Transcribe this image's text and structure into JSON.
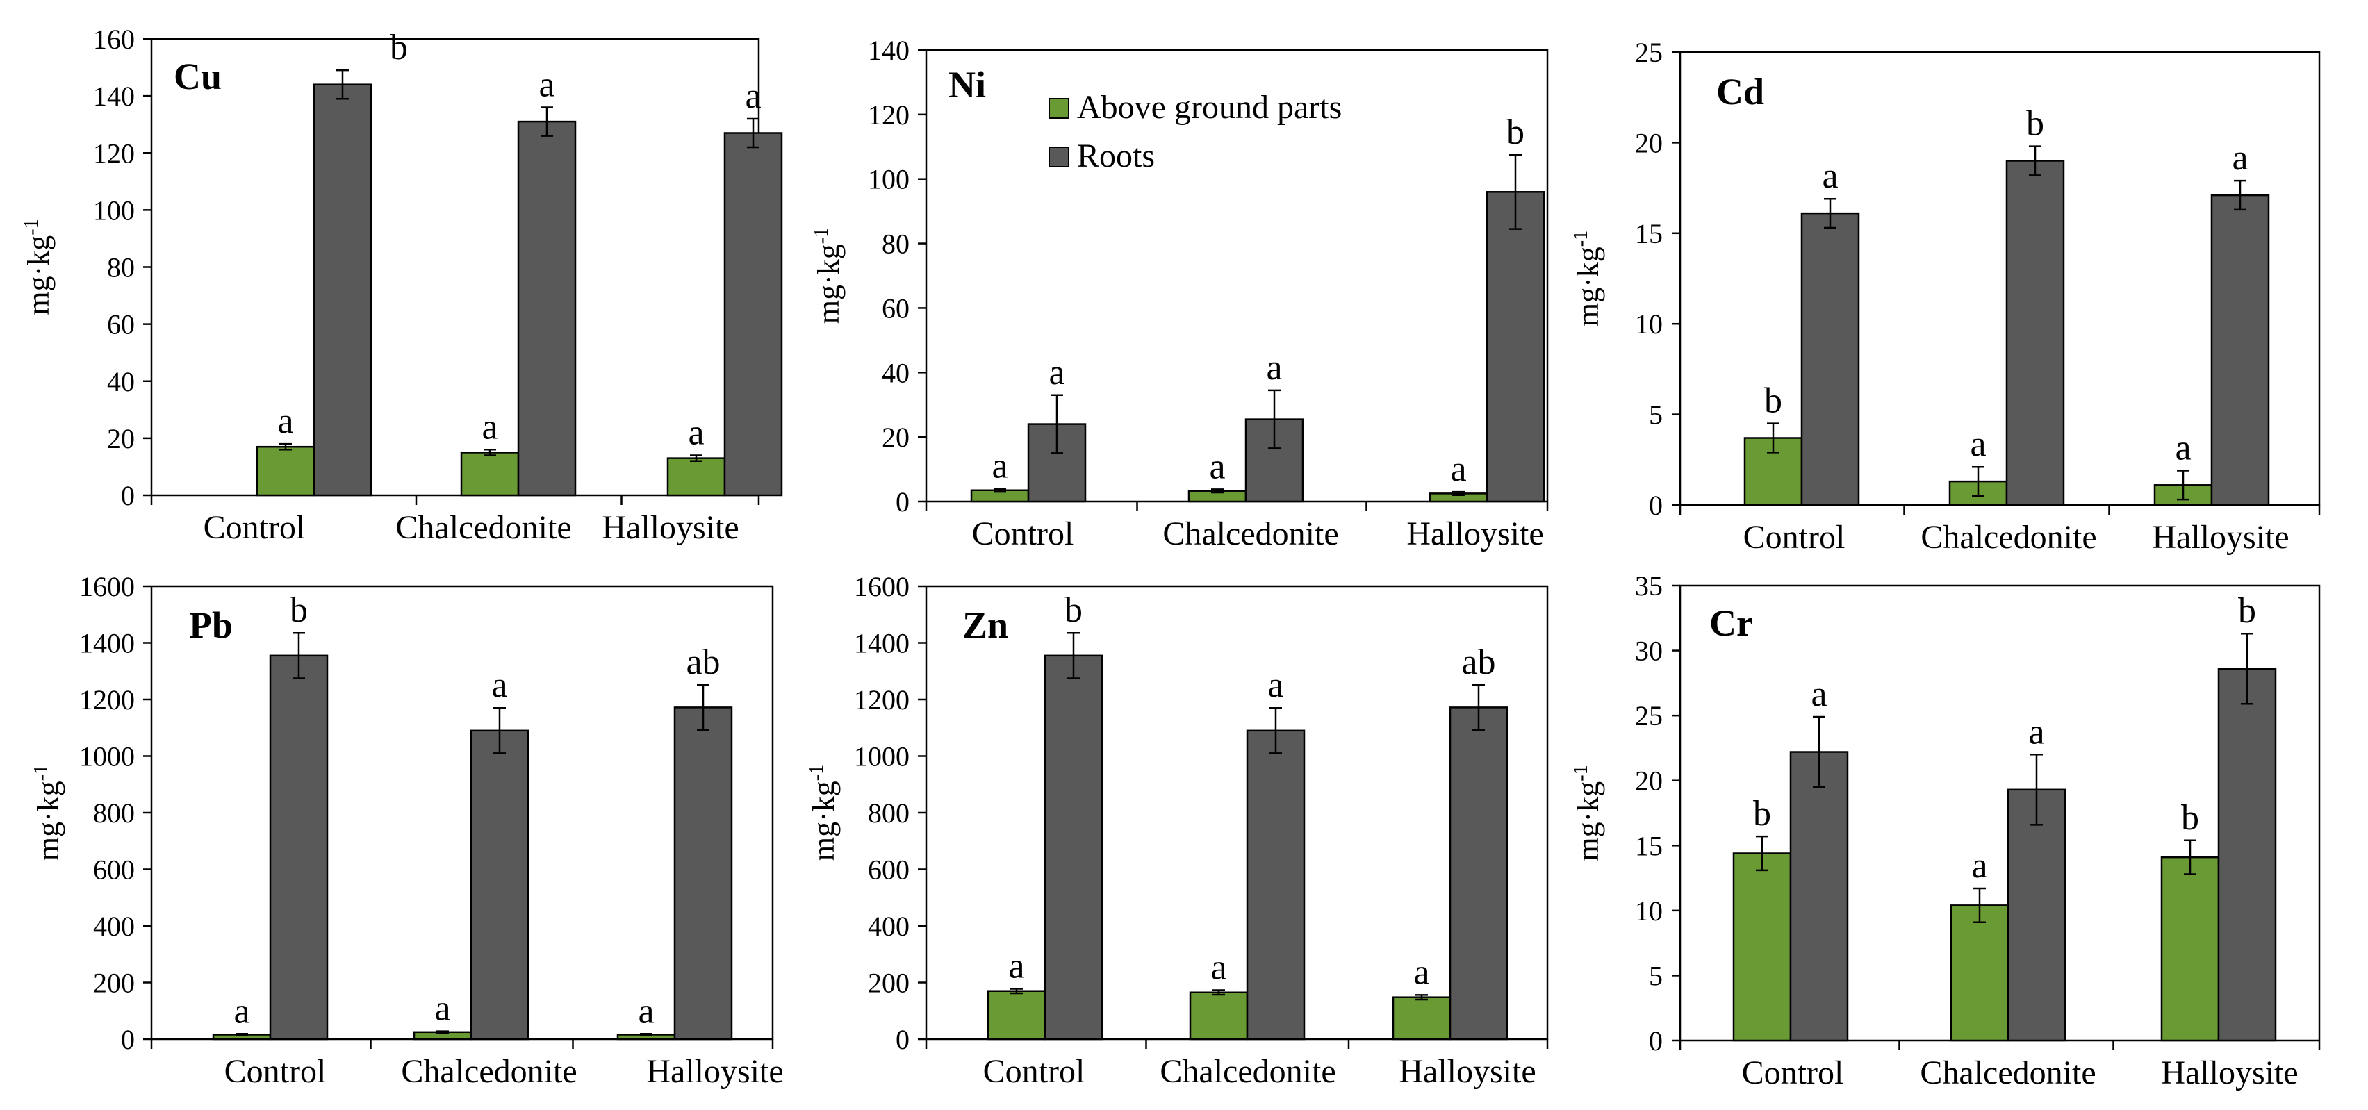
{
  "chart_data": [
    {
      "type": "bar",
      "title": "Cu",
      "categories": [
        "Control",
        "Chalcedonite",
        "Halloysite"
      ],
      "ylabel": "mg·kg-1",
      "ylim": [
        0,
        160
      ],
      "yticks": [
        0,
        20,
        40,
        60,
        80,
        100,
        120,
        140,
        160
      ],
      "series": [
        {
          "name": "Above ground parts",
          "color": "#6a9a34",
          "values": [
            17,
            15,
            13
          ],
          "errors": [
            1,
            1,
            1
          ],
          "letters": [
            "a",
            "a",
            "a"
          ]
        },
        {
          "name": "Roots",
          "color": "#595959",
          "values": [
            144,
            131,
            127
          ],
          "errors": [
            5,
            5,
            5
          ],
          "letters": [
            "b",
            "a",
            "a"
          ]
        }
      ]
    },
    {
      "type": "bar",
      "title": "Ni",
      "categories": [
        "Control",
        "Chalcedonite",
        "Halloysite"
      ],
      "ylabel": "mg·kg-1",
      "ylim": [
        0,
        140
      ],
      "yticks": [
        0,
        20,
        40,
        60,
        80,
        100,
        120,
        140
      ],
      "series": [
        {
          "name": "Above ground parts",
          "color": "#6a9a34",
          "values": [
            3.5,
            3.3,
            2.5
          ],
          "errors": [
            0.5,
            0.5,
            0.5
          ],
          "letters": [
            "a",
            "a",
            "a"
          ]
        },
        {
          "name": "Roots",
          "color": "#595959",
          "values": [
            24,
            25.5,
            96
          ],
          "errors": [
            9,
            9,
            11.5
          ],
          "letters": [
            "a",
            "a",
            "b"
          ]
        }
      ]
    },
    {
      "type": "bar",
      "title": "Cd",
      "categories": [
        "Control",
        "Chalcedonite",
        "Halloysite"
      ],
      "ylabel": "mg·kg-1",
      "ylim": [
        0,
        25
      ],
      "yticks": [
        0,
        5,
        10,
        15,
        20,
        25
      ],
      "series": [
        {
          "name": "Above ground parts",
          "color": "#6a9a34",
          "values": [
            3.7,
            1.3,
            1.1
          ],
          "errors": [
            0.8,
            0.8,
            0.8
          ],
          "letters": [
            "b",
            "a",
            "a"
          ]
        },
        {
          "name": "Roots",
          "color": "#595959",
          "values": [
            16.1,
            19.0,
            17.1
          ],
          "errors": [
            0.8,
            0.8,
            0.8
          ],
          "letters": [
            "a",
            "b",
            "a"
          ]
        }
      ]
    },
    {
      "type": "bar",
      "title": "Pb",
      "categories": [
        "Control",
        "Chalcedonite",
        "Halloysite"
      ],
      "ylabel": "mg·kg-1",
      "ylim": [
        0,
        1600
      ],
      "yticks": [
        0,
        200,
        400,
        600,
        800,
        1000,
        1200,
        1400,
        1600
      ],
      "series": [
        {
          "name": "Above ground parts",
          "color": "#6a9a34",
          "values": [
            16,
            25,
            16
          ],
          "errors": [
            3,
            3,
            3
          ],
          "letters": [
            "a",
            "a",
            "a"
          ]
        },
        {
          "name": "Roots",
          "color": "#595959",
          "values": [
            1355,
            1090,
            1172
          ],
          "errors": [
            80,
            80,
            80
          ],
          "letters": [
            "b",
            "a",
            "ab"
          ]
        }
      ]
    },
    {
      "type": "bar",
      "title": "Zn",
      "categories": [
        "Control",
        "Chalcedonite",
        "Halloysite"
      ],
      "ylabel": "mg·kg-1",
      "ylim": [
        0,
        1600
      ],
      "yticks": [
        0,
        200,
        400,
        600,
        800,
        1000,
        1200,
        1400,
        1600
      ],
      "series": [
        {
          "name": "Above ground parts",
          "color": "#6a9a34",
          "values": [
            170,
            165,
            148
          ],
          "errors": [
            8,
            8,
            8
          ],
          "letters": [
            "a",
            "a",
            "a"
          ]
        },
        {
          "name": "Roots",
          "color": "#595959",
          "values": [
            1355,
            1090,
            1172
          ],
          "errors": [
            80,
            80,
            80
          ],
          "letters": [
            "b",
            "a",
            "ab"
          ]
        }
      ]
    },
    {
      "type": "bar",
      "title": "Cr",
      "categories": [
        "Control",
        "Chalcedonite",
        "Halloysite"
      ],
      "ylabel": "mg·kg-1",
      "ylim": [
        0,
        35
      ],
      "yticks": [
        0,
        5,
        10,
        15,
        20,
        25,
        30,
        35
      ],
      "series": [
        {
          "name": "Above ground parts",
          "color": "#6a9a34",
          "values": [
            14.4,
            10.4,
            14.1
          ],
          "errors": [
            1.3,
            1.3,
            1.3
          ],
          "letters": [
            "b",
            "a",
            "b"
          ]
        },
        {
          "name": "Roots",
          "color": "#595959",
          "values": [
            22.2,
            19.3,
            28.6
          ],
          "errors": [
            2.7,
            2.7,
            2.7
          ],
          "letters": [
            "a",
            "a",
            "b"
          ]
        }
      ]
    }
  ],
  "legend": {
    "items": [
      {
        "label": "Above ground parts",
        "color": "#6a9a34"
      },
      {
        "label": "Roots",
        "color": "#595959"
      }
    ]
  }
}
